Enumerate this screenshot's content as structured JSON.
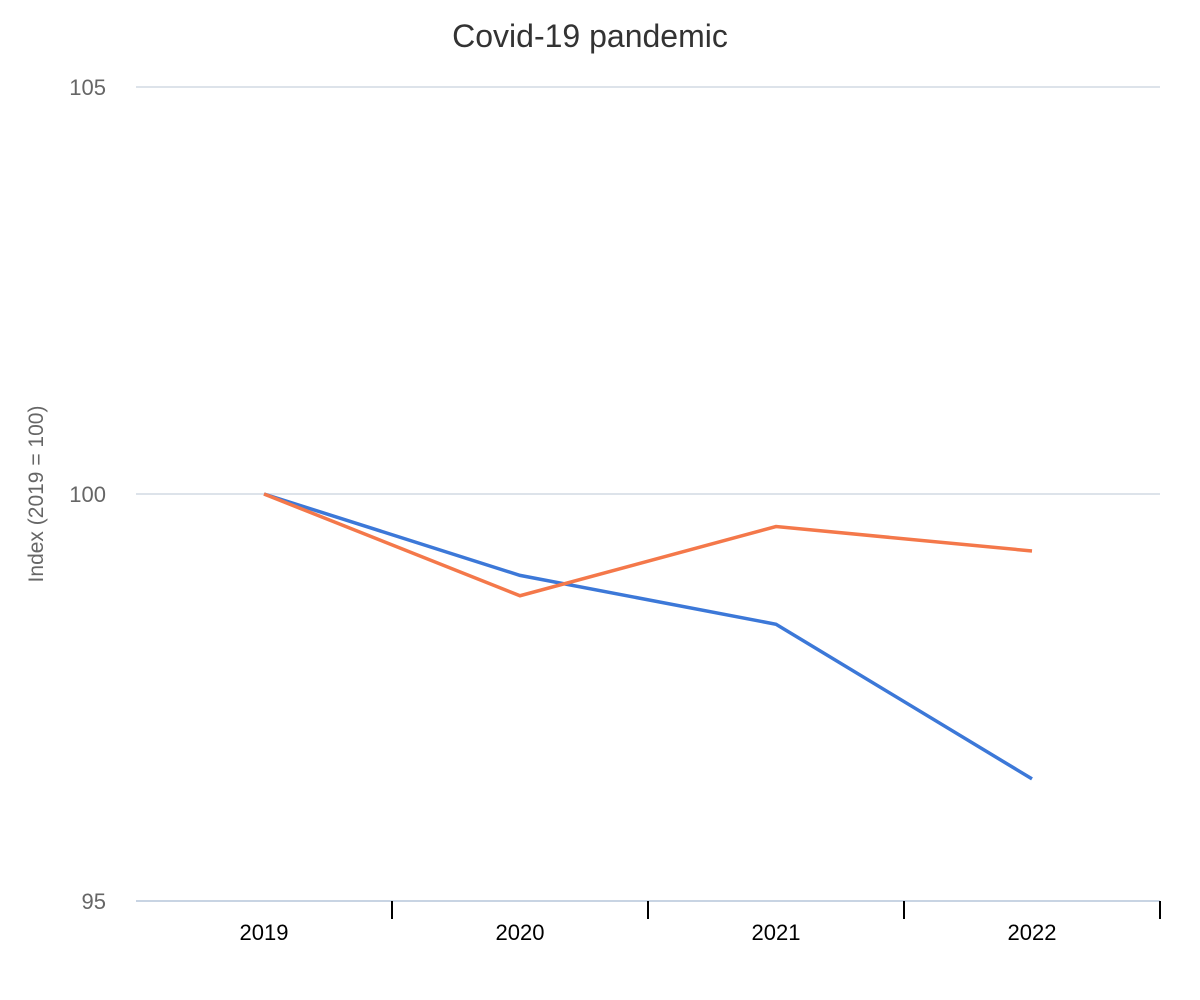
{
  "chart_data": {
    "type": "line",
    "title": "Covid-19 pandemic",
    "xlabel": "",
    "ylabel": "Index (2019 = 100)",
    "categories": [
      "2019",
      "2020",
      "2021",
      "2022"
    ],
    "ylim": [
      95,
      105
    ],
    "yticks": [
      "95",
      "100",
      "105"
    ],
    "grid": true,
    "legend": "none",
    "series": [
      {
        "color": "#3c78d8",
        "values": [
          100,
          99.0,
          98.4,
          96.5
        ]
      },
      {
        "color": "#f4784a",
        "values": [
          100,
          98.75,
          99.6,
          99.3
        ]
      }
    ]
  }
}
